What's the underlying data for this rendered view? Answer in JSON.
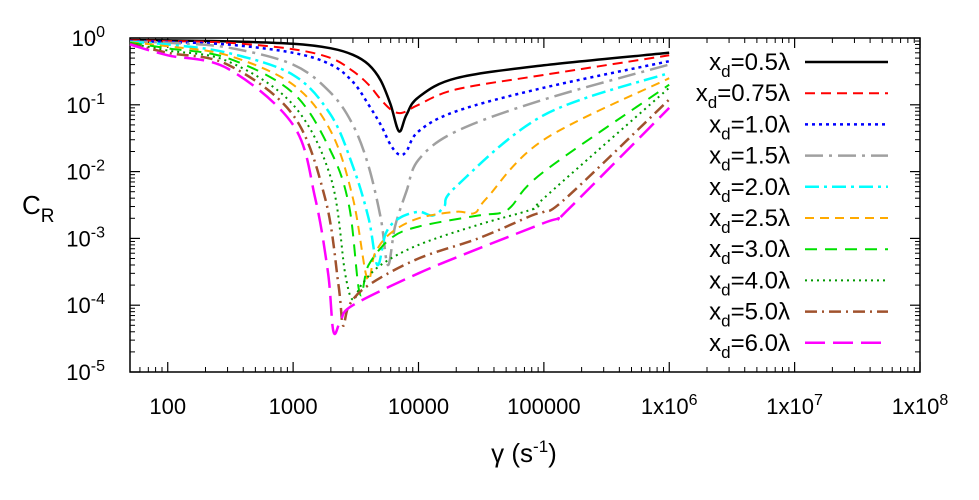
{
  "chart_data": {
    "type": "line",
    "title": "",
    "xlabel": "γ (s⁻¹)",
    "ylabel": "C_R",
    "xscale": "log",
    "yscale": "log",
    "xlim": [
      50,
      100000000
    ],
    "ylim": [
      1e-05,
      1
    ],
    "grid": false,
    "legend_position": "top-right",
    "xticks": [
      {
        "value": 100,
        "label": "100"
      },
      {
        "value": 1000,
        "label": "1000"
      },
      {
        "value": 10000,
        "label": "10000"
      },
      {
        "value": 100000,
        "label": "100000"
      },
      {
        "value": 1000000,
        "label": "1x10",
        "sup": "6"
      },
      {
        "value": 10000000,
        "label": "1x10",
        "sup": "7"
      },
      {
        "value": 100000000,
        "label": "1x10",
        "sup": "8"
      }
    ],
    "yticks": [
      {
        "value": 1,
        "label": "10",
        "sup": "0"
      },
      {
        "value": 0.1,
        "label": "10",
        "sup": "-1"
      },
      {
        "value": 0.01,
        "label": "10",
        "sup": "-2"
      },
      {
        "value": 0.001,
        "label": "10",
        "sup": "-3"
      },
      {
        "value": 0.0001,
        "label": "10",
        "sup": "-4"
      },
      {
        "value": 1e-05,
        "label": "10",
        "sup": "-5"
      }
    ],
    "series": [
      {
        "label_main": "x",
        "label_sub": "d",
        "label_rest": "=0.5λ",
        "color": "#000000",
        "dash": "",
        "width": 2.5,
        "points": [
          [
            50,
            0.93
          ],
          [
            100,
            0.92
          ],
          [
            300,
            0.89
          ],
          [
            1000,
            0.82
          ],
          [
            2000,
            0.7
          ],
          [
            3000,
            0.56
          ],
          [
            4000,
            0.4
          ],
          [
            5000,
            0.23
          ],
          [
            6000,
            0.1
          ],
          [
            7000,
            0.04
          ],
          [
            8000,
            0.07
          ],
          [
            10000,
            0.13
          ],
          [
            20000,
            0.25
          ],
          [
            100000,
            0.39
          ],
          [
            1000000,
            0.6
          ]
        ]
      },
      {
        "label_main": "x",
        "label_sub": "d",
        "label_rest": "=0.75λ",
        "color": "#ff0000",
        "dash": "10,6",
        "width": 2,
        "points": [
          [
            50,
            0.92
          ],
          [
            100,
            0.9
          ],
          [
            300,
            0.85
          ],
          [
            1000,
            0.68
          ],
          [
            2000,
            0.5
          ],
          [
            3000,
            0.32
          ],
          [
            4000,
            0.2
          ],
          [
            5000,
            0.12
          ],
          [
            6000,
            0.085
          ],
          [
            7000,
            0.075
          ],
          [
            8000,
            0.08
          ],
          [
            10000,
            0.1
          ],
          [
            20000,
            0.17
          ],
          [
            100000,
            0.28
          ],
          [
            1000000,
            0.55
          ]
        ]
      },
      {
        "label_main": "x",
        "label_sub": "d",
        "label_rest": "=1.0λ",
        "color": "#0000ff",
        "dash": "3,4",
        "width": 2.5,
        "points": [
          [
            50,
            0.9
          ],
          [
            100,
            0.87
          ],
          [
            300,
            0.8
          ],
          [
            1000,
            0.6
          ],
          [
            2000,
            0.4
          ],
          [
            3000,
            0.22
          ],
          [
            4000,
            0.1
          ],
          [
            5000,
            0.05
          ],
          [
            6000,
            0.025
          ],
          [
            7000,
            0.018
          ],
          [
            8000,
            0.02
          ],
          [
            10000,
            0.04
          ],
          [
            20000,
            0.08
          ],
          [
            100000,
            0.18
          ],
          [
            1000000,
            0.45
          ]
        ]
      },
      {
        "label_main": "x",
        "label_sub": "d",
        "label_rest": "=1.5λ",
        "color": "#a0a0a0",
        "dash": "18,6,3,6",
        "width": 2.5,
        "points": [
          [
            50,
            0.88
          ],
          [
            100,
            0.85
          ],
          [
            300,
            0.72
          ],
          [
            1000,
            0.4
          ],
          [
            2000,
            0.15
          ],
          [
            3000,
            0.05
          ],
          [
            4000,
            0.012
          ],
          [
            5000,
            0.002
          ],
          [
            5700,
            0.0004
          ],
          [
            6500,
            0.0015
          ],
          [
            8000,
            0.005
          ],
          [
            10000,
            0.015
          ],
          [
            20000,
            0.04
          ],
          [
            100000,
            0.12
          ],
          [
            1000000,
            0.4
          ]
        ]
      },
      {
        "label_main": "x",
        "label_sub": "d",
        "label_rest": "=2.0λ",
        "color": "#00ffff",
        "dash": "14,5,3,5",
        "width": 2.5,
        "points": [
          [
            50,
            0.87
          ],
          [
            100,
            0.8
          ],
          [
            300,
            0.6
          ],
          [
            1000,
            0.28
          ],
          [
            2000,
            0.07
          ],
          [
            3000,
            0.012
          ],
          [
            4000,
            0.002
          ],
          [
            4700,
            0.0004
          ],
          [
            5500,
            0.0012
          ],
          [
            7000,
            0.002
          ],
          [
            10000,
            0.0025
          ],
          [
            13000,
            0.0022
          ],
          [
            16000,
            0.003
          ],
          [
            20000,
            0.006
          ],
          [
            100000,
            0.07
          ],
          [
            1000000,
            0.3
          ]
        ]
      },
      {
        "label_main": "x",
        "label_sub": "d",
        "label_rest": "=2.5λ",
        "color": "#ffaa00",
        "dash": "9,6",
        "width": 2,
        "points": [
          [
            50,
            0.86
          ],
          [
            100,
            0.75
          ],
          [
            300,
            0.55
          ],
          [
            1000,
            0.2
          ],
          [
            2000,
            0.04
          ],
          [
            3000,
            0.004
          ],
          [
            3900,
            0.00025
          ],
          [
            4500,
            0.0006
          ],
          [
            6000,
            0.0012
          ],
          [
            10000,
            0.002
          ],
          [
            20000,
            0.0025
          ],
          [
            28000,
            0.0024
          ],
          [
            35000,
            0.004
          ],
          [
            100000,
            0.03
          ],
          [
            1000000,
            0.25
          ]
        ]
      },
      {
        "label_main": "x",
        "label_sub": "d",
        "label_rest": "=3.0λ",
        "color": "#00e000",
        "dash": "12,8",
        "width": 2,
        "points": [
          [
            50,
            0.85
          ],
          [
            100,
            0.7
          ],
          [
            300,
            0.5
          ],
          [
            1000,
            0.15
          ],
          [
            2000,
            0.02
          ],
          [
            2800,
            0.003
          ],
          [
            3400,
            0.00015
          ],
          [
            4000,
            0.0004
          ],
          [
            6000,
            0.001
          ],
          [
            10000,
            0.0015
          ],
          [
            30000,
            0.0022
          ],
          [
            45000,
            0.0024
          ],
          [
            55000,
            0.003
          ],
          [
            100000,
            0.01
          ],
          [
            1000000,
            0.2
          ]
        ]
      },
      {
        "label_main": "x",
        "label_sub": "d",
        "label_rest": "=4.0λ",
        "color": "#009900",
        "dash": "2,4",
        "width": 2,
        "points": [
          [
            50,
            0.83
          ],
          [
            100,
            0.65
          ],
          [
            300,
            0.45
          ],
          [
            1000,
            0.1
          ],
          [
            2000,
            0.008
          ],
          [
            2600,
            0.0003
          ],
          [
            3000,
            0.00012
          ],
          [
            3500,
            0.0002
          ],
          [
            5000,
            0.0004
          ],
          [
            10000,
            0.0008
          ],
          [
            30000,
            0.0016
          ],
          [
            70000,
            0.0025
          ],
          [
            90000,
            0.003
          ],
          [
            100000,
            0.004
          ],
          [
            1000000,
            0.18
          ]
        ]
      },
      {
        "label_main": "x",
        "label_sub": "d",
        "label_rest": "=5.0λ",
        "color": "#a0522d",
        "dash": "12,5,2,5",
        "width": 2.5,
        "points": [
          [
            50,
            0.82
          ],
          [
            100,
            0.6
          ],
          [
            300,
            0.4
          ],
          [
            1000,
            0.07
          ],
          [
            1800,
            0.004
          ],
          [
            2300,
            0.0002
          ],
          [
            2500,
            5e-05
          ],
          [
            2800,
            0.0001
          ],
          [
            4000,
            0.0002
          ],
          [
            10000,
            0.0005
          ],
          [
            30000,
            0.001
          ],
          [
            80000,
            0.0022
          ],
          [
            100000,
            0.0025
          ],
          [
            150000,
            0.004
          ],
          [
            1000000,
            0.12
          ]
        ]
      },
      {
        "label_main": "x",
        "label_sub": "d",
        "label_rest": "=6.0λ",
        "color": "#ff00ff",
        "dash": "20,8",
        "width": 2.5,
        "points": [
          [
            50,
            0.8
          ],
          [
            100,
            0.55
          ],
          [
            300,
            0.35
          ],
          [
            1000,
            0.05
          ],
          [
            1500,
            0.004
          ],
          [
            1900,
            0.0003
          ],
          [
            2100,
            4e-05
          ],
          [
            2400,
            6e-05
          ],
          [
            3000,
            0.0001
          ],
          [
            10000,
            0.0003
          ],
          [
            30000,
            0.0007
          ],
          [
            100000,
            0.0017
          ],
          [
            130000,
            0.002
          ],
          [
            150000,
            0.0025
          ],
          [
            1000000,
            0.09
          ]
        ]
      }
    ]
  }
}
